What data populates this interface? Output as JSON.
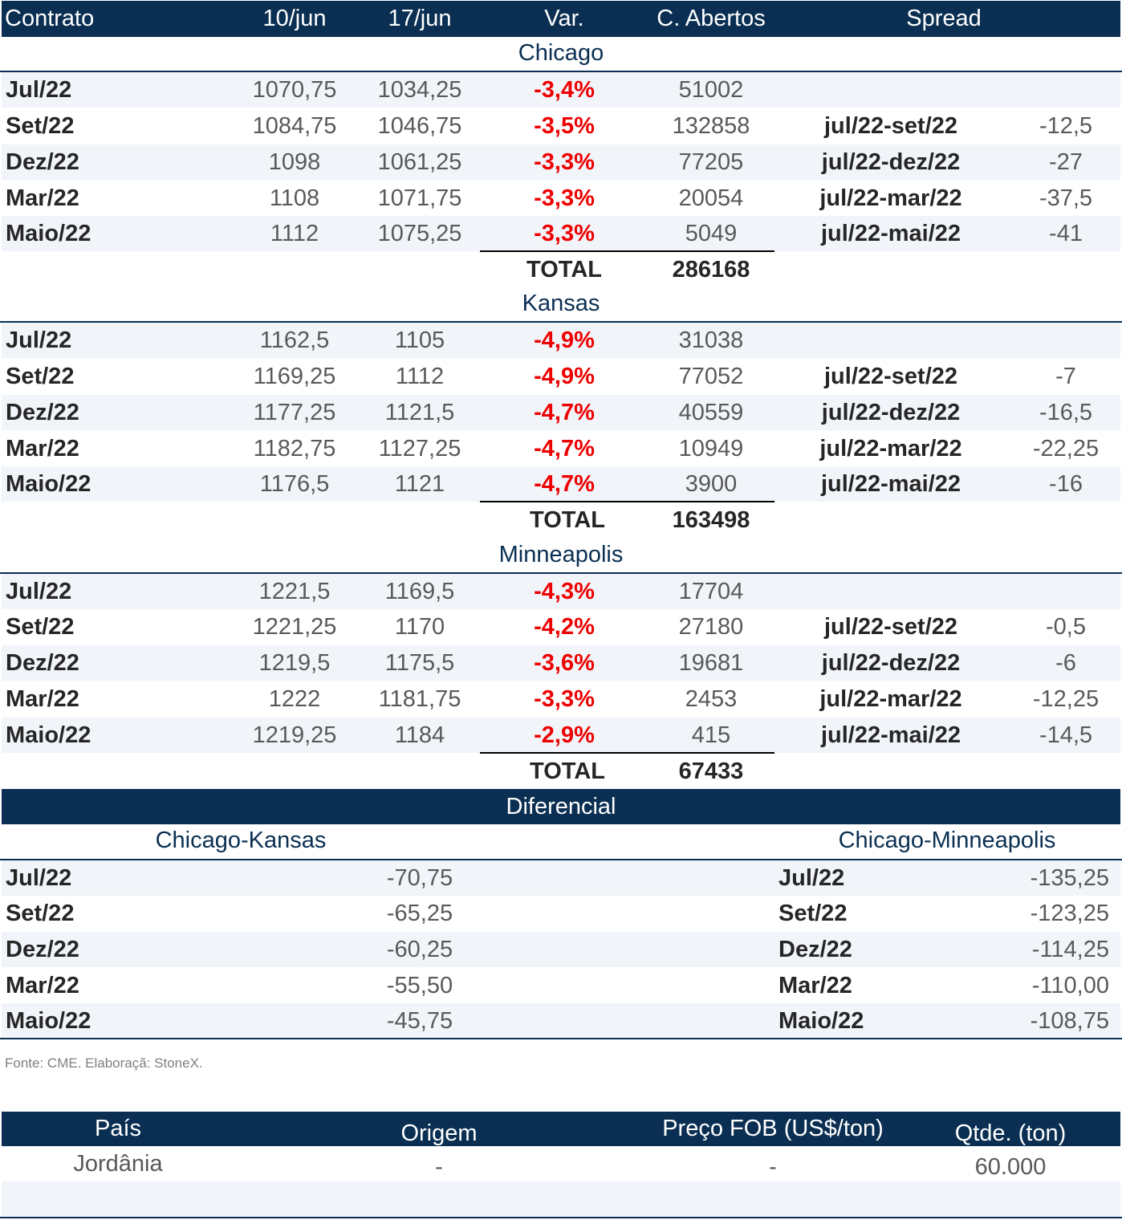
{
  "header": {
    "contrato": "Contrato",
    "d1": "10/jun",
    "d2": "17/jun",
    "var": "Var.",
    "ca": "C. Abertos",
    "spread": "Spread"
  },
  "sections": [
    {
      "name": "Chicago",
      "rows": [
        {
          "c": "Jul/22",
          "p1": "1070,75",
          "p2": "1034,25",
          "var": "-3,4%",
          "ca": "51002",
          "sl": "",
          "sv": ""
        },
        {
          "c": "Set/22",
          "p1": "1084,75",
          "p2": "1046,75",
          "var": "-3,5%",
          "ca": "132858",
          "sl": "jul/22-set/22",
          "sv": "-12,5"
        },
        {
          "c": "Dez/22",
          "p1": "1098",
          "p2": "1061,25",
          "var": "-3,3%",
          "ca": "77205",
          "sl": "jul/22-dez/22",
          "sv": "-27"
        },
        {
          "c": "Mar/22",
          "p1": "1108",
          "p2": "1071,75",
          "var": "-3,3%",
          "ca": "20054",
          "sl": "jul/22-mar/22",
          "sv": "-37,5"
        },
        {
          "c": "Maio/22",
          "p1": "1112",
          "p2": "1075,25",
          "var": "-3,3%",
          "ca": "5049",
          "sl": "jul/22-mai/22",
          "sv": "-41"
        }
      ],
      "total_label": "TOTAL",
      "total": "286168"
    },
    {
      "name": "Kansas",
      "rows": [
        {
          "c": "Jul/22",
          "p1": "1162,5",
          "p2": "1105",
          "var": "-4,9%",
          "ca": "31038",
          "sl": "",
          "sv": ""
        },
        {
          "c": "Set/22",
          "p1": "1169,25",
          "p2": "1112",
          "var": "-4,9%",
          "ca": "77052",
          "sl": "jul/22-set/22",
          "sv": "-7"
        },
        {
          "c": "Dez/22",
          "p1": "1177,25",
          "p2": "1121,5",
          "var": "-4,7%",
          "ca": "40559",
          "sl": "jul/22-dez/22",
          "sv": "-16,5"
        },
        {
          "c": "Mar/22",
          "p1": "1182,75",
          "p2": "1127,25",
          "var": "-4,7%",
          "ca": "10949",
          "sl": "jul/22-mar/22",
          "sv": "-22,25"
        },
        {
          "c": "Maio/22",
          "p1": "1176,5",
          "p2": "1121",
          "var": "-4,7%",
          "ca": "3900",
          "sl": "jul/22-mai/22",
          "sv": "-16"
        }
      ],
      "total_label": "TOTAL",
      "total": "163498"
    },
    {
      "name": "Minneapolis",
      "rows": [
        {
          "c": "Jul/22",
          "p1": "1221,5",
          "p2": "1169,5",
          "var": "-4,3%",
          "ca": "17704",
          "sl": "",
          "sv": ""
        },
        {
          "c": "Set/22",
          "p1": "1221,25",
          "p2": "1170",
          "var": "-4,2%",
          "ca": "27180",
          "sl": "jul/22-set/22",
          "sv": "-0,5"
        },
        {
          "c": "Dez/22",
          "p1": "1219,5",
          "p2": "1175,5",
          "var": "-3,6%",
          "ca": "19681",
          "sl": "jul/22-dez/22",
          "sv": "-6"
        },
        {
          "c": "Mar/22",
          "p1": "1222",
          "p2": "1181,75",
          "var": "-3,3%",
          "ca": "2453",
          "sl": "jul/22-mar/22",
          "sv": "-12,25"
        },
        {
          "c": "Maio/22",
          "p1": "1219,25",
          "p2": "1184",
          "var": "-2,9%",
          "ca": "415",
          "sl": "jul/22-mai/22",
          "sv": "-14,5"
        }
      ],
      "total_label": "TOTAL",
      "total": "67433"
    }
  ],
  "diferencial": {
    "title": "Diferencial",
    "left_title": "Chicago-Kansas",
    "right_title": "Chicago-Minneapolis",
    "rows": [
      {
        "c": "Jul/22",
        "ck": "-70,75",
        "c2": "Jul/22",
        "cm": "-135,25"
      },
      {
        "c": "Set/22",
        "ck": "-65,25",
        "c2": "Set/22",
        "cm": "-123,25"
      },
      {
        "c": "Dez/22",
        "ck": "-60,25",
        "c2": "Dez/22",
        "cm": "-114,25"
      },
      {
        "c": "Mar/22",
        "ck": "-55,50",
        "c2": "Mar/22",
        "cm": "-110,00"
      },
      {
        "c": "Maio/22",
        "ck": "-45,75",
        "c2": "Maio/22",
        "cm": "-108,75"
      }
    ]
  },
  "source": "Fonte: CME. Elaboraçã: StoneX.",
  "table2": {
    "headers": {
      "pais": "País",
      "origem": "Origem",
      "preco": "Preço FOB (US$/ton)",
      "qtde": "Qtde. (ton)"
    },
    "rows": [
      {
        "pais": "Jordânia",
        "origem": "-",
        "preco": "-",
        "qtde": "60.000"
      }
    ]
  }
}
